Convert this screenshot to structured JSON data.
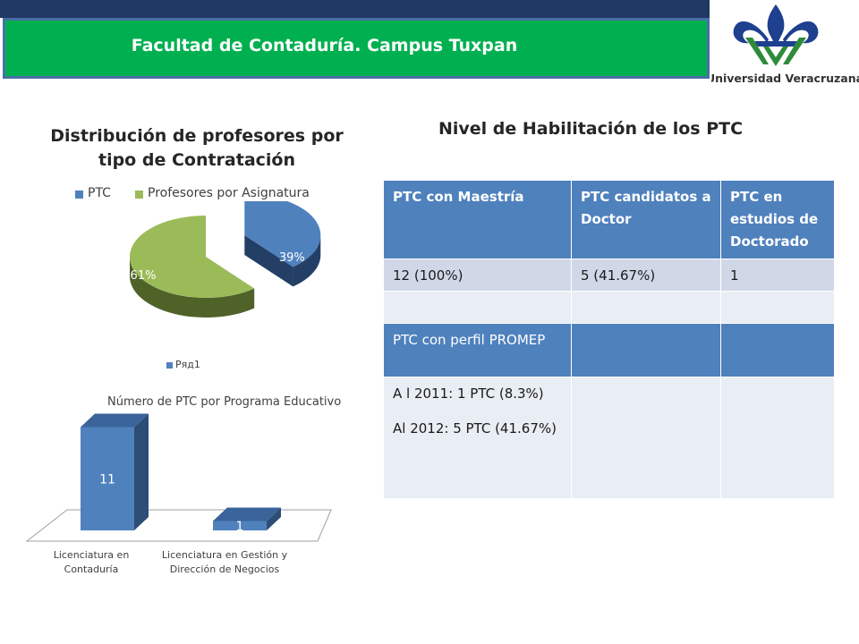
{
  "header": {
    "title": "Facultad de Contaduría. Campus Tuxpan"
  },
  "logo": {
    "text": "Universidad Veracruzana"
  },
  "colors": {
    "header_green": "#00b050",
    "header_navy": "#1f3864",
    "ptc_blue": "#4f81bd",
    "asignatura_green": "#9bbb59",
    "table_header": "#4f81bd",
    "table_row_odd": "#d0d8e8",
    "table_row_even": "#e9edf4"
  },
  "pie_chart": {
    "title_line1": "Distribución de profesores por",
    "title_line2": "tipo de Contratación"
  },
  "bar_chart": {
    "title": "Número de PTC por Programa Educativo",
    "cat1_line1": "Licenciatura en",
    "cat1_line2": "Contaduría",
    "cat2_line1": "Licenciatura en Gestión y",
    "cat2_line2": "Dirección de Negocios"
  },
  "table": {
    "title": "Nivel de Habilitación de  los PTC",
    "headers": [
      "PTC con Maestría",
      "PTC  candidatos a Doctor",
      "PTC en estudios de Doctorado"
    ],
    "row1": [
      "12 (100%)",
      "5 (41.67%)",
      "1"
    ],
    "promep_label": "PTC   con perfil PROMEP",
    "promep_2011": " A l  2011:  1 PTC (8.3%)",
    "promep_2012": "Al   2012:  5 PTC (41.67%)"
  },
  "chart_data": [
    {
      "type": "pie",
      "title": "Distribución de profesores por tipo de Contratación",
      "legend_position": "top",
      "categories": [
        "PTC",
        "Profesores por Asignatura"
      ],
      "values": [
        39,
        61
      ],
      "data_labels": [
        "39%",
        "61%"
      ],
      "colors": [
        "#4f81bd",
        "#9bbb59"
      ]
    },
    {
      "type": "bar",
      "title": "Número de PTC por Programa Educativo",
      "categories": [
        "Licenciatura en Contaduría",
        "Licenciatura en Gestión y Dirección de Negocios"
      ],
      "series": [
        {
          "name": "Ряд1",
          "values": [
            11,
            1
          ]
        }
      ],
      "legend_position": "top",
      "ylim": [
        0,
        12
      ],
      "color": "#4f81bd"
    }
  ]
}
